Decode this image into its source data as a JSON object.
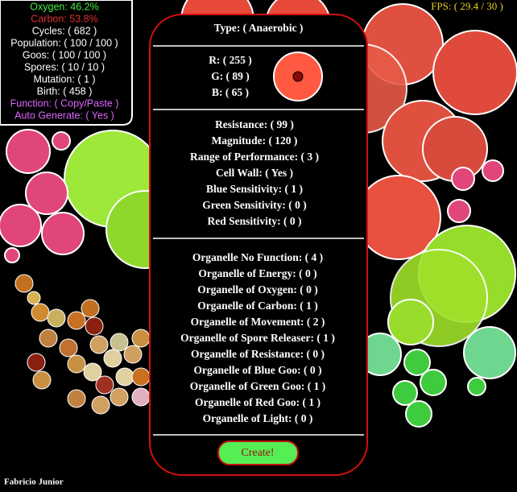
{
  "stats": {
    "oxygen": "Oxygen: 46.2%",
    "carbon": "Carbon: 53.8%",
    "cycles": "Cycles: ( 682 )",
    "population": "Population: ( 100 / 100 )",
    "goos": "Goos: ( 100 / 100 )",
    "spores": "Spores: ( 10 / 10 )",
    "mutation": "Mutation: ( 1 )",
    "birth": "Birth: ( 458 )",
    "function": "Function: ( Copy/Paste )",
    "auto_generate": "Auto Generate: ( Yes )"
  },
  "fps": "FPS: ( 29.4 / 30 )",
  "panel": {
    "type": "Type: ( Anaerobic )",
    "rgb": [
      "R: ( 255 )",
      "G: ( 89 )",
      "B: ( 65 )"
    ],
    "properties": [
      "Resistance: ( 99 )",
      "Magnitude: ( 120 )",
      "Range of Performance: ( 3 )",
      "Cell Wall: ( Yes )",
      "Blue Sensitivity: ( 1 )",
      "Green Sensitivity: ( 0 )",
      "Red Sensitivity: ( 0 )"
    ],
    "organelles": [
      "Organelle No Function: ( 4 )",
      "Organelle of Energy: ( 0 )",
      "Organelle of Oxygen: ( 0 )",
      "Organelle of Carbon: ( 1 )",
      "Organelle of Movement: ( 2 )",
      "Organelle of Spore Releaser: ( 1 )",
      "Organelle of Resistance: ( 0 )",
      "Organelle of Blue Goo: ( 0 )",
      "Organelle of Green Goo: ( 1 )",
      "Organelle of Red Goo: ( 1 )",
      "Organelle of Light: ( 0 )"
    ],
    "button": "Create!"
  },
  "footer": "Fabricio Junior"
}
